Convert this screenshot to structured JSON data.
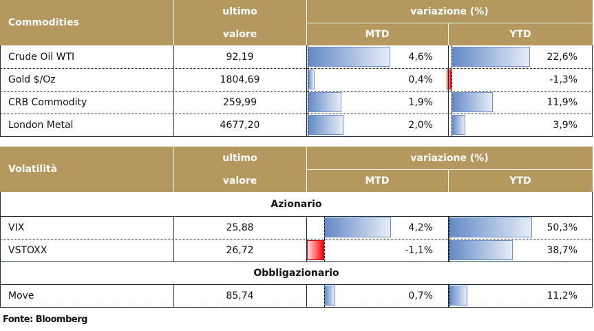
{
  "commodities": {
    "header": {
      "name": "Commodities",
      "ultimo": "ultimo",
      "valore": "valore",
      "variazione": "variazione (%)",
      "mtd": "MTD",
      "ytd": "YTD"
    },
    "rows": [
      {
        "name": "Crude Oil WTI",
        "value": "92,19",
        "mtd": "4,6%",
        "ytd": "22,6%",
        "mtd_v": 4.6,
        "ytd_v": 22.6
      },
      {
        "name": "Gold $/Oz",
        "value": "1804,69",
        "mtd": "0,4%",
        "ytd": "-1,3%",
        "mtd_v": 0.4,
        "ytd_v": -1.3
      },
      {
        "name": "CRB Commodity",
        "value": "259,99",
        "mtd": "1,9%",
        "ytd": "11,9%",
        "mtd_v": 1.9,
        "ytd_v": 11.9
      },
      {
        "name": "London Metal",
        "value": "4677,20",
        "mtd": "2,0%",
        "ytd": "3,9%",
        "mtd_v": 2.0,
        "ytd_v": 3.9
      }
    ]
  },
  "volatility": {
    "header": {
      "name": "Volatilità",
      "ultimo": "ultimo",
      "valore": "valore",
      "variazione": "variazione (%)",
      "mtd": "MTD",
      "ytd": "YTD"
    },
    "sections": [
      "Azionario",
      "Obbligazionario"
    ],
    "rows": [
      {
        "name": "VIX",
        "value": "25,88",
        "mtd": "4,2%",
        "ytd": "50,3%",
        "mtd_v": 4.2,
        "ytd_v": 50.3
      },
      {
        "name": "VSTOXX",
        "value": "26,72",
        "mtd": "-1,1%",
        "ytd": "38,7%",
        "mtd_v": -1.1,
        "ytd_v": 38.7
      },
      {
        "name": "Move",
        "value": "85,74",
        "mtd": "0,7%",
        "ytd": "11,2%",
        "mtd_v": 0.7,
        "ytd_v": 11.2
      }
    ]
  },
  "footer": "Fonte: Bloomberg"
}
